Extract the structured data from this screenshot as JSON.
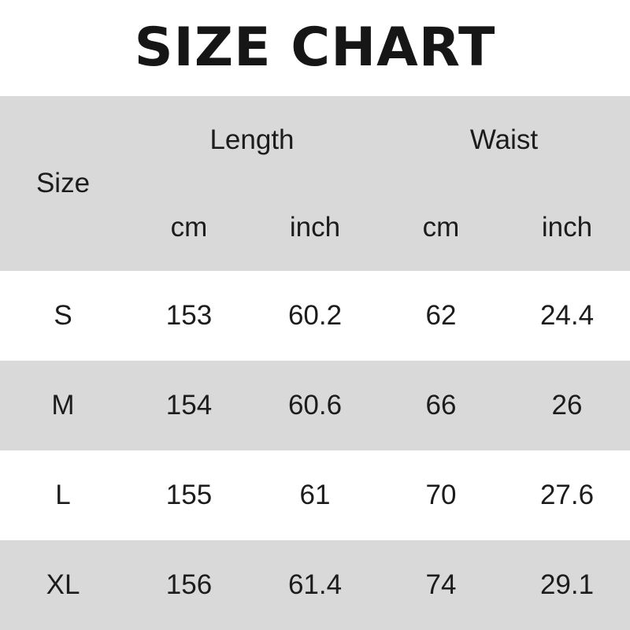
{
  "title": "SIZE CHART",
  "table": {
    "size_header": "Size",
    "groups": [
      {
        "label": "Length",
        "units": [
          "cm",
          "inch"
        ]
      },
      {
        "label": "Waist",
        "units": [
          "cm",
          "inch"
        ]
      }
    ],
    "rows": [
      {
        "size": "S",
        "values": [
          "153",
          "60.2",
          "62",
          "24.4"
        ]
      },
      {
        "size": "M",
        "values": [
          "154",
          "60.6",
          "66",
          "26"
        ]
      },
      {
        "size": "L",
        "values": [
          "155",
          "61",
          "70",
          "27.6"
        ]
      },
      {
        "size": "XL",
        "values": [
          "156",
          "61.4",
          "74",
          "29.1"
        ]
      }
    ]
  },
  "colors": {
    "band_gray": "#d9d9d9",
    "row_white": "#ffffff",
    "text": "#1c1c1c",
    "title_text": "#161616"
  },
  "chart_data": {
    "type": "table",
    "title": "SIZE CHART",
    "columns": [
      "Size",
      "Length cm",
      "Length inch",
      "Waist cm",
      "Waist inch"
    ],
    "rows": [
      [
        "S",
        153,
        60.2,
        62,
        24.4
      ],
      [
        "M",
        154,
        60.6,
        66,
        26
      ],
      [
        "L",
        155,
        61,
        70,
        27.6
      ],
      [
        "XL",
        156,
        61.4,
        74,
        29.1
      ]
    ]
  }
}
